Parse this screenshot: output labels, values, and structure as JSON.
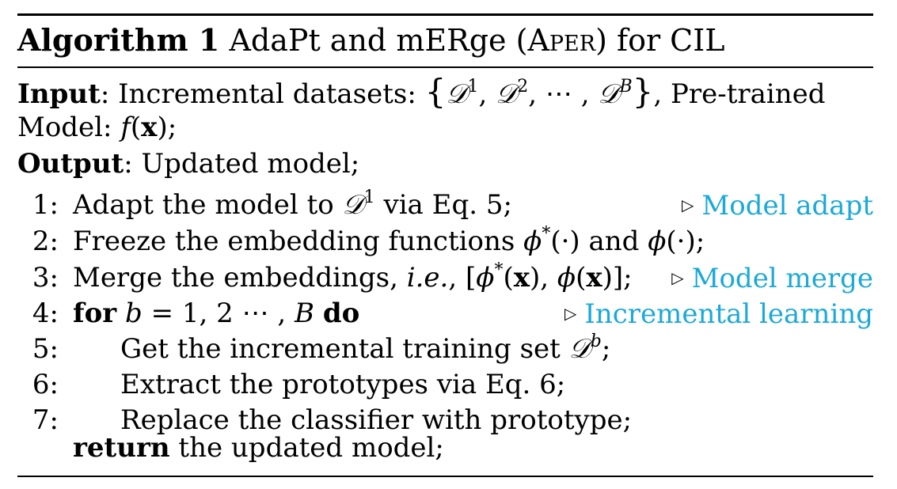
{
  "algorithm": {
    "label": "Algorithm 1",
    "title_prefix": "AdaPt and mERge (",
    "title_sc": "Aper",
    "title_suffix": ") for CIL"
  },
  "input": {
    "label": "Input",
    "text": ": Incremental datasets: ",
    "tail": ", Pre-trained",
    "line2": "Model: "
  },
  "output": {
    "label": "Output",
    "text": ": Updated model;"
  },
  "steps": [
    {
      "num": "1:",
      "comment": "Model adapt"
    },
    {
      "num": "2:"
    },
    {
      "num": "3:",
      "comment": "Model merge"
    },
    {
      "num": "4:",
      "comment": "Incremental learning"
    },
    {
      "num": "5:"
    },
    {
      "num": "6:"
    },
    {
      "num": "7:"
    }
  ],
  "text": {
    "s1a": "Adapt the model to ",
    "s1b": " via Eq. 5;",
    "s2a": "Freeze the embedding functions ",
    "s2b": " and ",
    "s3a": "Merge the embeddings, ",
    "s3b": "i.e.",
    "s4for": "for",
    "s4do": "do",
    "s5": "Get the incremental training set ",
    "s6": "Extract the prototypes via Eq. 6;",
    "s7": "Replace the classifier with prototype;",
    "ret_kw": "return",
    "ret_text": " the updated model;"
  }
}
